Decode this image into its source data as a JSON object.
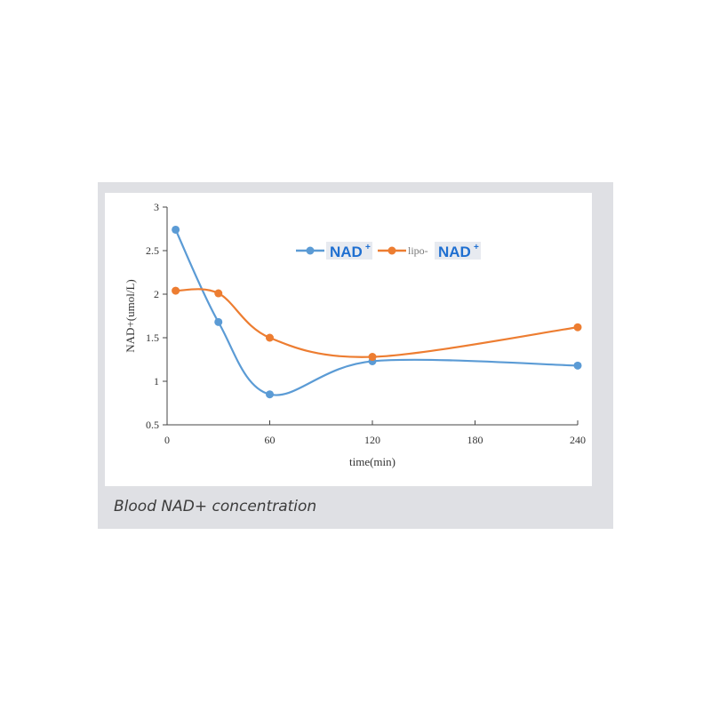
{
  "caption": "Blood NAD+ concentration",
  "chart_data": {
    "type": "line",
    "title": "",
    "xlabel": "time(min)",
    "ylabel": "NAD+(umol/L)",
    "xlim": [
      0,
      240
    ],
    "ylim": [
      0.5,
      3
    ],
    "xticks": [
      0,
      60,
      120,
      180,
      240
    ],
    "yticks": [
      0.5,
      1,
      1.5,
      2,
      2.5,
      3
    ],
    "ytick_labels": [
      "0.5",
      "1",
      "1.5",
      "2",
      "2.5",
      "3"
    ],
    "grid": false,
    "legend_position": "top-center",
    "series": [
      {
        "name": "NAD+",
        "legend_prefix": "",
        "legend_badge": "NAD",
        "legend_sup": "+",
        "color": "#5b9bd5",
        "x": [
          5,
          30,
          60,
          120,
          240
        ],
        "y": [
          2.74,
          1.68,
          0.85,
          1.23,
          1.18
        ]
      },
      {
        "name": "lipo-NAD+",
        "legend_prefix": "lipo-",
        "legend_badge": "NAD",
        "legend_sup": "+",
        "color": "#ed7d31",
        "x": [
          5,
          30,
          60,
          120,
          240
        ],
        "y": [
          2.04,
          2.01,
          1.5,
          1.28,
          1.62
        ]
      }
    ]
  }
}
